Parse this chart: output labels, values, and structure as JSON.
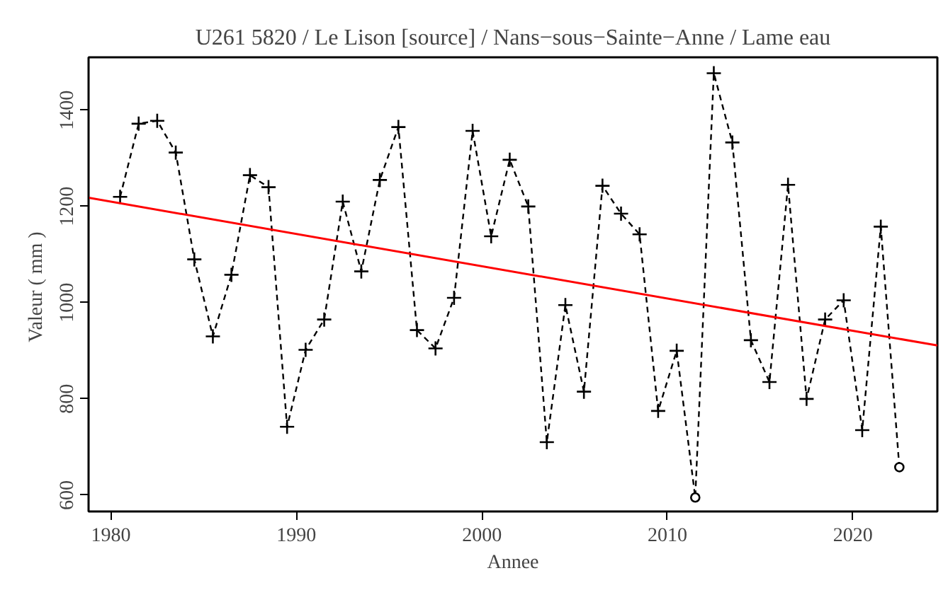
{
  "chart_data": {
    "type": "line",
    "title": "U261 5820 / Le Lison [source] / Nans−sous−Sainte−Anne / Lame eau",
    "xlabel": "Annee",
    "ylabel": "Valeur  ( mm )",
    "x": [
      1980.5,
      1981.5,
      1982.5,
      1983.5,
      1984.5,
      1985.5,
      1986.5,
      1987.5,
      1988.5,
      1989.5,
      1990.5,
      1991.5,
      1992.5,
      1993.5,
      1994.5,
      1995.5,
      1996.5,
      1997.5,
      1998.5,
      1999.5,
      2000.5,
      2001.5,
      2002.5,
      2003.5,
      2004.5,
      2005.5,
      2006.5,
      2007.5,
      2008.5,
      2009.5,
      2010.5,
      2011.5,
      2012.5,
      2013.5,
      2014.5,
      2015.5,
      2016.5,
      2017.5,
      2018.5,
      2019.5,
      2020.5,
      2021.5,
      2022.5
    ],
    "series": [
      {
        "color": "#000000",
        "line_style": "dashed",
        "marker": "none",
        "values": [
          1220,
          1372,
          1378,
          1312,
          1090,
          930,
          1058,
          1265,
          1240,
          742,
          902,
          965,
          1210,
          1065,
          1255,
          1365,
          943,
          905,
          1010,
          1357,
          1138,
          1297,
          1200,
          710,
          995,
          815,
          1243,
          1185,
          1142,
          775,
          900,
          595,
          1477,
          1333,
          922,
          835,
          1245,
          800,
          965,
          1005,
          735,
          1158,
          658
        ]
      },
      {
        "type": "scatter",
        "color": "#000000",
        "marker": "cross",
        "values": [
          1220,
          1372,
          1378,
          1312,
          1090,
          930,
          1058,
          1265,
          1240,
          742,
          902,
          965,
          1210,
          1065,
          1255,
          1365,
          943,
          905,
          1010,
          1357,
          1138,
          1297,
          1200,
          710,
          995,
          815,
          1243,
          1185,
          1142,
          775,
          900,
          null,
          1477,
          1333,
          922,
          835,
          1245,
          800,
          965,
          1005,
          735,
          1158,
          null
        ]
      },
      {
        "type": "scatter",
        "color": "#000000",
        "marker": "circle",
        "values": [
          null,
          null,
          null,
          null,
          null,
          null,
          null,
          null,
          null,
          null,
          null,
          null,
          null,
          null,
          null,
          null,
          null,
          null,
          null,
          null,
          null,
          null,
          null,
          null,
          null,
          null,
          null,
          null,
          null,
          null,
          null,
          595,
          null,
          null,
          null,
          null,
          null,
          null,
          null,
          null,
          null,
          null,
          658
        ]
      },
      {
        "color": "#ff0000",
        "line_style": "solid",
        "marker": "none",
        "x": [
          1978.8,
          2024.55
        ],
        "values": [
          1218,
          911
        ]
      }
    ],
    "xlim": [
      1978.8,
      2024.55
    ],
    "ylim": [
      566,
      1510
    ],
    "xticks": [
      1980,
      1990,
      2000,
      2010,
      2020
    ],
    "yticks": [
      600,
      800,
      1000,
      1200,
      1400
    ],
    "grid": false
  }
}
